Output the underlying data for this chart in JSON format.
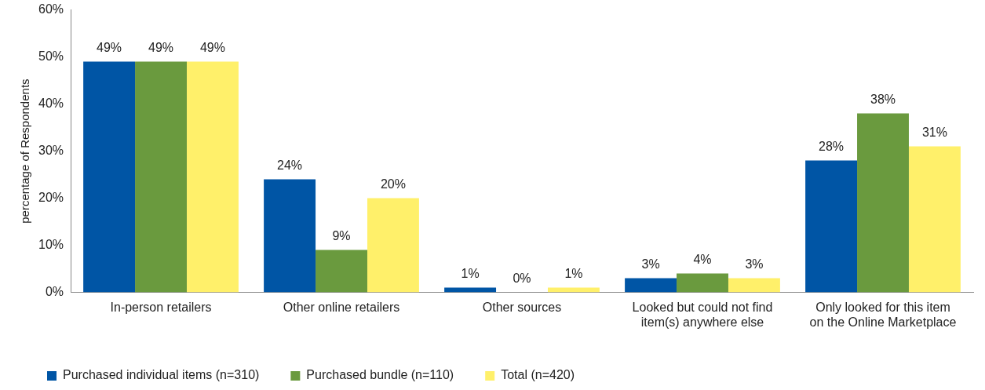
{
  "chart_data": {
    "type": "bar",
    "ylabel": "percentage of Respondents",
    "categories": [
      "In-person retailers",
      "Other online retailers",
      "Other sources",
      "Looked but could not find item(s) anywhere else",
      "Only looked for this item on the Online Marketplace"
    ],
    "series": [
      {
        "name": "Purchased individual items (n=310)",
        "color": "#0055a5",
        "values": [
          49,
          24,
          1,
          3,
          28
        ],
        "value_labels": [
          "49%",
          "24%",
          "1%",
          "3%",
          "28%"
        ]
      },
      {
        "name": "Purchased bundle (n=110)",
        "color": "#6a9a3e",
        "values": [
          49,
          9,
          0,
          4,
          38
        ],
        "value_labels": [
          "49%",
          "9%",
          "0%",
          "4%",
          "38%"
        ]
      },
      {
        "name": "Total (n=420)",
        "color": "#fff06a",
        "values": [
          49,
          20,
          1,
          3,
          31
        ],
        "value_labels": [
          "49%",
          "20%",
          "1%",
          "3%",
          "31%"
        ]
      }
    ],
    "ylim": [
      0,
      60
    ],
    "yticks": [
      {
        "value": 0,
        "label": "0%"
      },
      {
        "value": 10,
        "label": "10%"
      },
      {
        "value": 20,
        "label": "20%"
      },
      {
        "value": 30,
        "label": "30%"
      },
      {
        "value": 40,
        "label": "40%"
      },
      {
        "value": 50,
        "label": "50%"
      },
      {
        "value": 60,
        "label": "60%"
      }
    ],
    "grid": false,
    "legend": "bottom"
  }
}
